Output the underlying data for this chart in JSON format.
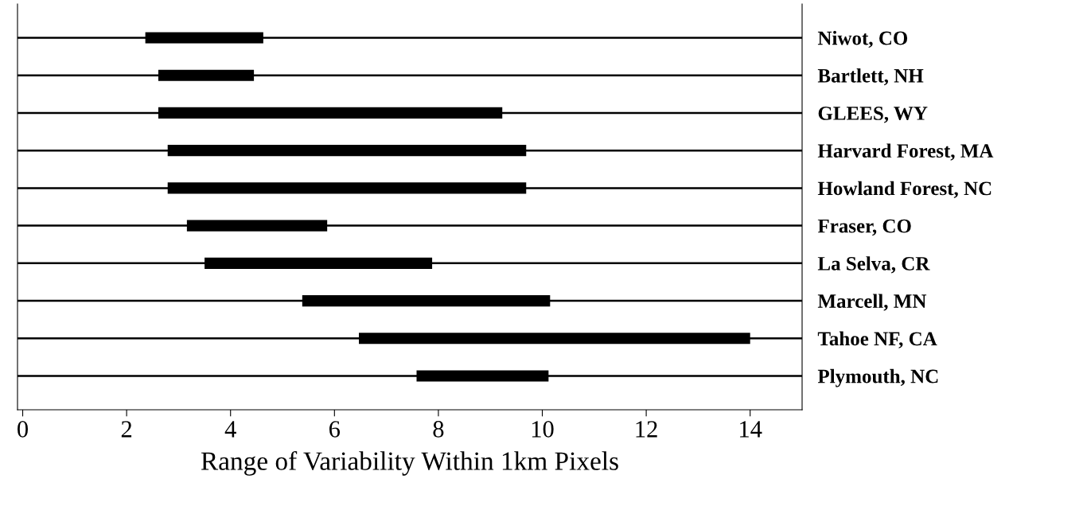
{
  "chart_data": {
    "type": "bar",
    "orientation": "horizontal",
    "xlabel": "Range of Variability Within 1km Pixels",
    "categories": [
      "Niwot, CO",
      "Bartlett, NH",
      "GLEES, WY",
      "Harvard Forest, MA",
      "Howland Forest, NC",
      "Fraser, CO",
      "La Selva, CR",
      "Marcell, MN",
      "Tahoe NF, CA",
      "Plymouth, NC"
    ],
    "base": [
      2.36,
      2.61,
      2.61,
      2.79,
      2.79,
      3.16,
      3.5,
      5.38,
      6.47,
      7.58
    ],
    "values": [
      2.27,
      1.84,
      6.62,
      6.9,
      6.9,
      2.7,
      4.38,
      4.77,
      7.53,
      2.54
    ],
    "color": "#000000",
    "xlim": [
      -0.1,
      15
    ],
    "xticks": [
      0,
      2,
      4,
      6,
      8,
      10,
      12,
      14
    ],
    "grid": "y",
    "legend": false
  }
}
